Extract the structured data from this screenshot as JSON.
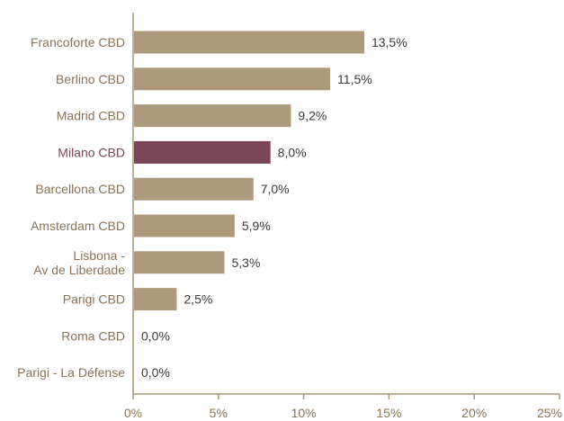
{
  "chart_data": {
    "type": "bar",
    "orientation": "horizontal",
    "categories": [
      "Francoforte CBD",
      "Berlino CBD",
      "Madrid CBD",
      "Milano CBD",
      "Barcellona CBD",
      "Amsterdam CBD",
      "Lisbona - Av de Liberdade",
      "Parigi CBD",
      "Roma CBD",
      "Parigi - La Défense"
    ],
    "values": [
      13.5,
      11.5,
      9.2,
      8.0,
      7.0,
      5.9,
      5.3,
      2.5,
      0.0,
      0.0
    ],
    "value_labels": [
      "13,5%",
      "11,5%",
      "9,2%",
      "8,0%",
      "7,0%",
      "5,9%",
      "5,3%",
      "2,5%",
      "0,0%",
      "0,0%"
    ],
    "highlight": "Milano CBD",
    "xlim": [
      0,
      25
    ],
    "xticks": [
      0,
      5,
      10,
      15,
      20,
      25
    ],
    "xtick_labels": [
      "0%",
      "5%",
      "10%",
      "15%",
      "20%",
      "25%"
    ],
    "title": "",
    "xlabel": "",
    "ylabel": "",
    "grid": false,
    "legend": "none"
  },
  "colors": {
    "bar": "#ad9a7d",
    "highlight": "#7a4556",
    "axis": "#a89576",
    "label": "#8a7355",
    "highlight_label": "#7a4556"
  }
}
